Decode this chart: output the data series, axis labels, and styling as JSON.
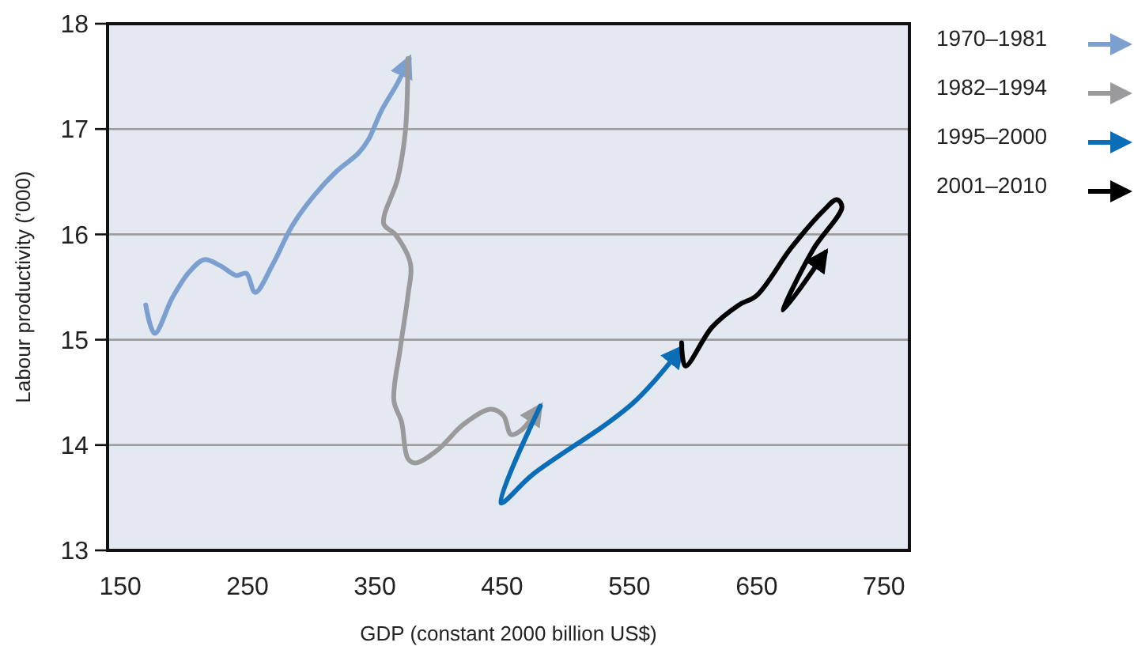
{
  "chart_data": {
    "type": "line",
    "xlabel": "GDP (constant 2000 billion US$)",
    "ylabel": "Labour productivity (’000)",
    "xlim": [
      140,
      770
    ],
    "xticks": [
      150,
      250,
      350,
      450,
      550,
      650,
      750
    ],
    "ylim": [
      13,
      18
    ],
    "yticks": [
      13,
      14,
      15,
      16,
      17,
      18
    ],
    "grid": "y",
    "legend": "right",
    "marker": "none",
    "line_style": "solid",
    "series": [
      {
        "name": "1970–1981",
        "color": "#7b9fcf",
        "x": [
          170,
          177,
          191,
          204,
          216,
          229,
          241,
          249,
          256,
          270,
          285,
          303,
          320,
          337,
          345,
          355,
          368,
          377
        ],
        "values": [
          15.33,
          15.06,
          15.4,
          15.64,
          15.76,
          15.7,
          15.61,
          15.63,
          15.45,
          15.72,
          16.08,
          16.38,
          16.6,
          16.77,
          16.9,
          17.17,
          17.44,
          17.67
        ]
      },
      {
        "name": "1982–1994",
        "color": "#9a9a9c",
        "x": [
          376,
          374,
          368,
          357,
          366,
          378,
          376,
          370,
          365,
          371,
          376,
          382,
          399,
          420,
          441,
          451,
          457,
          465,
          480
        ],
        "values": [
          17.67,
          16.98,
          16.53,
          16.1,
          16.0,
          15.72,
          15.42,
          14.92,
          14.42,
          14.22,
          13.87,
          13.83,
          13.95,
          14.2,
          14.34,
          14.28,
          14.1,
          14.14,
          14.37
        ]
      },
      {
        "name": "1995–2000",
        "color": "#0a6db7",
        "x": [
          480,
          449,
          474,
          532,
          553,
          569,
          591
        ],
        "values": [
          14.37,
          13.45,
          13.72,
          14.2,
          14.4,
          14.6,
          14.92
        ]
      },
      {
        "name": "2001–2010",
        "color": "#000000",
        "x": [
          591,
          594,
          615,
          636,
          650,
          677,
          702,
          713,
          717,
          694,
          671,
          704
        ],
        "values": [
          14.97,
          14.75,
          15.12,
          15.33,
          15.42,
          15.87,
          16.22,
          16.33,
          16.26,
          15.85,
          15.28,
          15.83
        ]
      }
    ]
  }
}
